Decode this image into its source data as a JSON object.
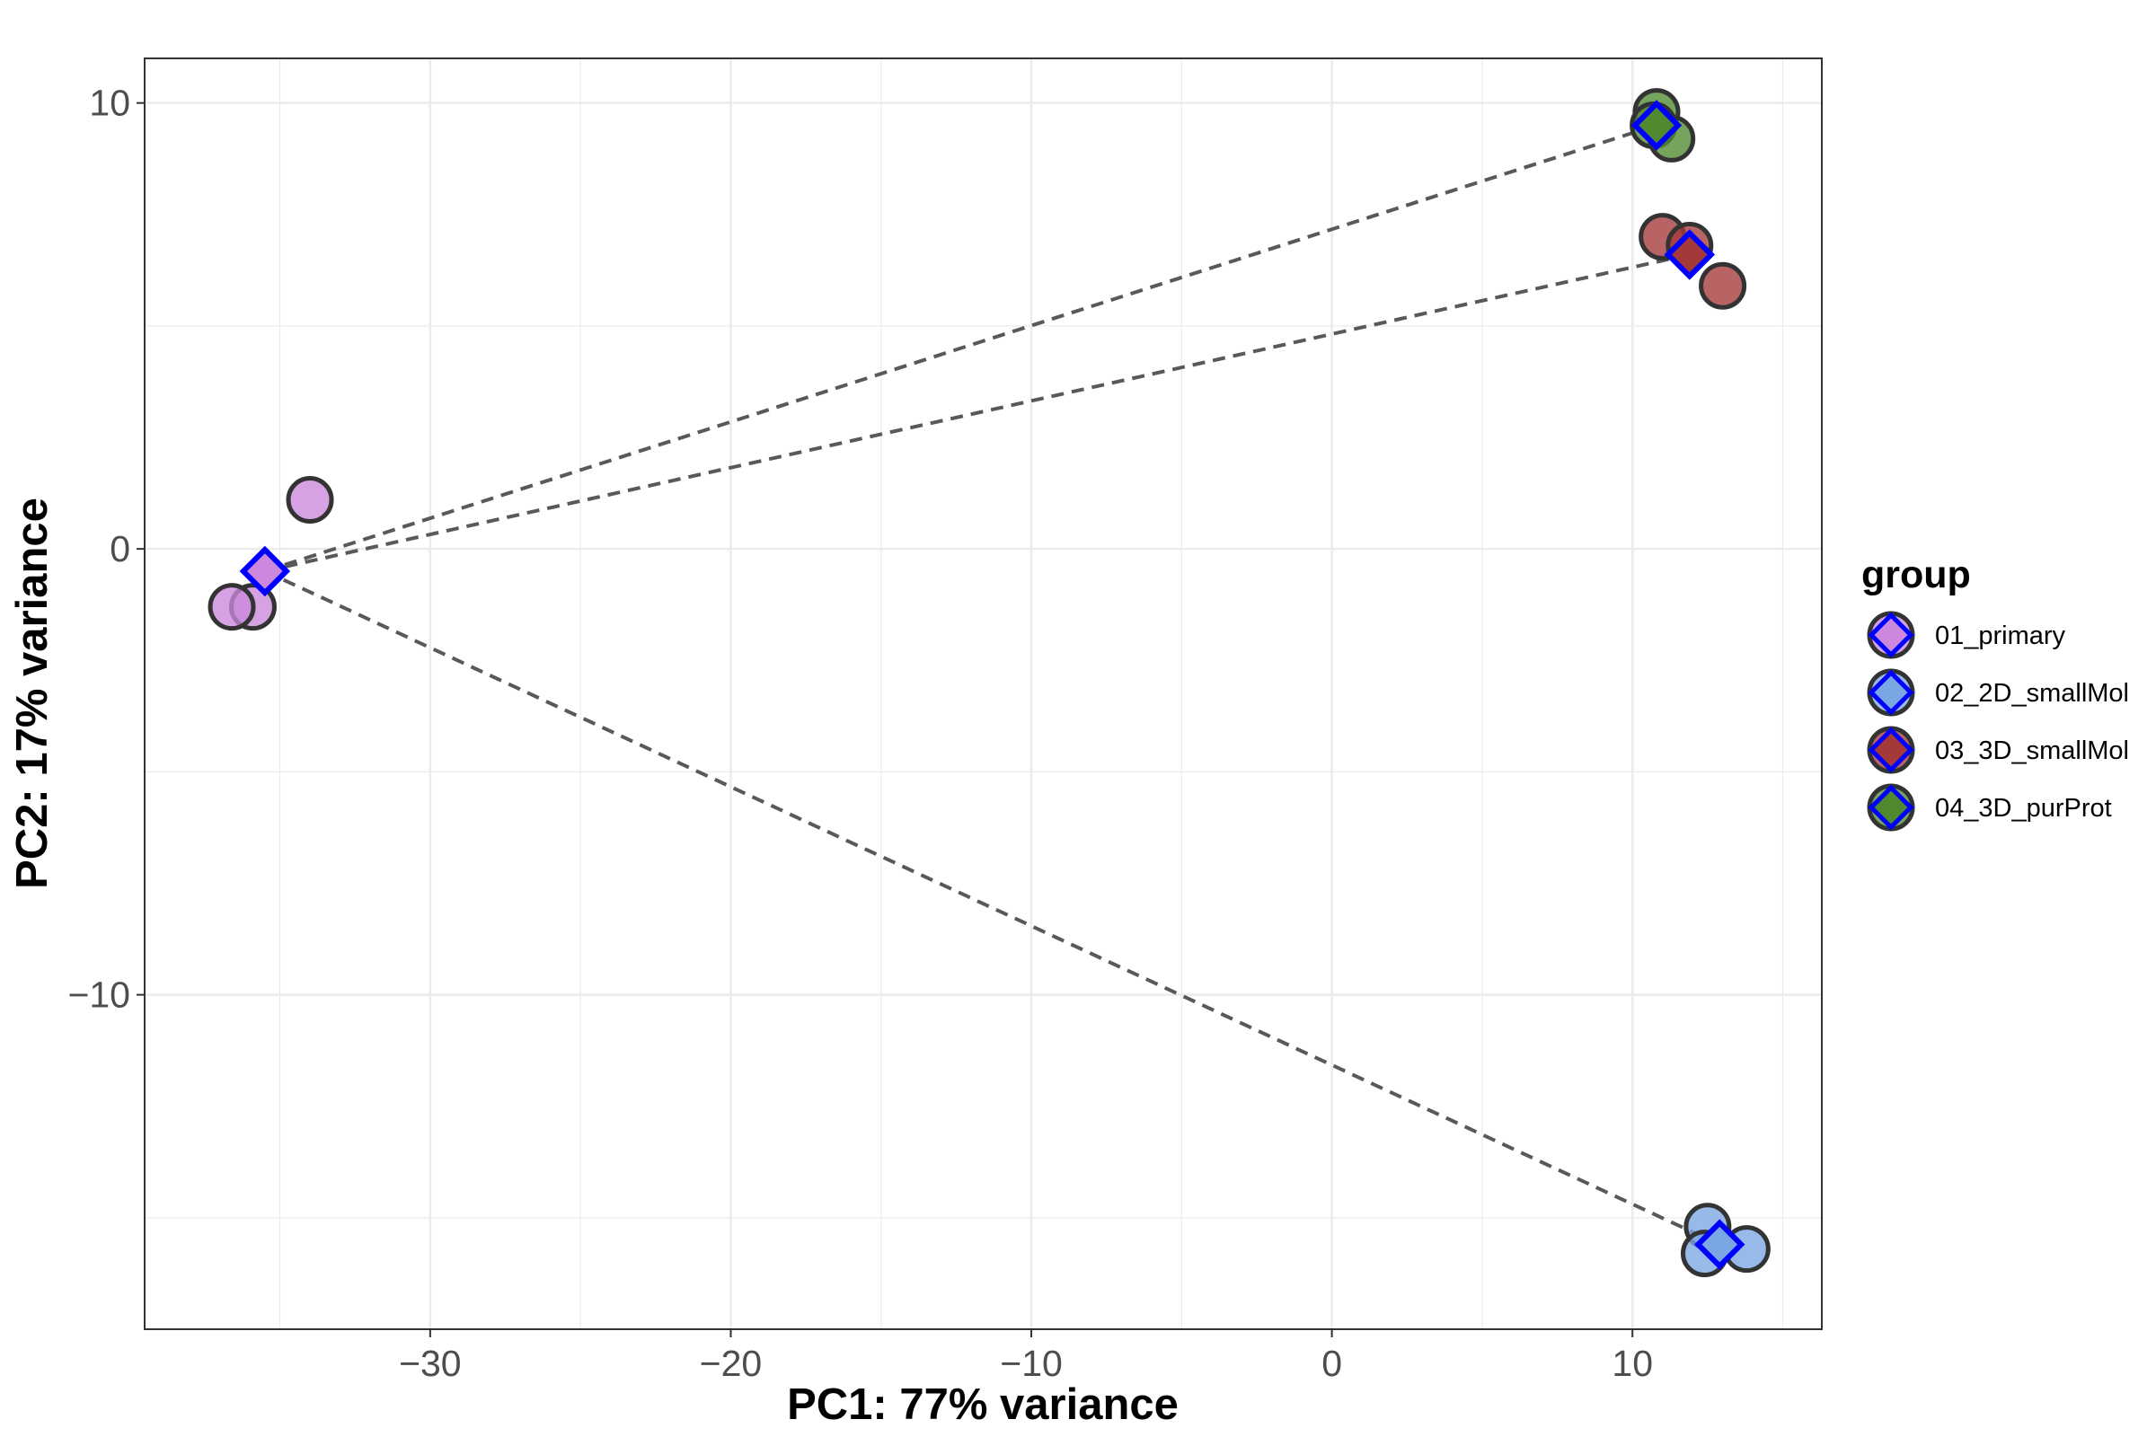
{
  "chart_data": {
    "type": "scatter",
    "xlabel": "PC1: 77% variance",
    "ylabel": "PC2: 17% variance",
    "xlim": [
      -39.5,
      16.3
    ],
    "ylim": [
      -17.5,
      11.0
    ],
    "xticks": [
      -30,
      -20,
      -10,
      0,
      10
    ],
    "yticks": [
      -10,
      0,
      10
    ],
    "xtick_labels": [
      "−30",
      "−20",
      "−10",
      "0",
      "10"
    ],
    "ytick_labels": [
      "−10",
      "0",
      "10"
    ],
    "grid": true,
    "legend": {
      "title": "group",
      "position": "right"
    },
    "series": [
      {
        "name": "01_primary",
        "color": "#cc88dd",
        "points": [
          {
            "x": -34.0,
            "y": 1.1
          },
          {
            "x": -35.9,
            "y": -1.3
          },
          {
            "x": -36.6,
            "y": -1.3
          }
        ],
        "centroid": {
          "x": -35.5,
          "y": -0.5
        }
      },
      {
        "name": "02_2D_smallMol",
        "color": "#7aa6e3",
        "points": [
          {
            "x": 12.5,
            "y": -15.2
          },
          {
            "x": 13.8,
            "y": -15.7
          },
          {
            "x": 12.4,
            "y": -15.8
          }
        ],
        "centroid": {
          "x": 12.9,
          "y": -15.6
        }
      },
      {
        "name": "03_3D_smallMol",
        "color": "#a53838",
        "points": [
          {
            "x": 11.0,
            "y": 7.0
          },
          {
            "x": 11.9,
            "y": 6.8
          },
          {
            "x": 13.0,
            "y": 5.9
          }
        ],
        "centroid": {
          "x": 11.9,
          "y": 6.6
        }
      },
      {
        "name": "04_3D_purProt",
        "color": "#4f8a2e",
        "points": [
          {
            "x": 10.8,
            "y": 9.8
          },
          {
            "x": 10.7,
            "y": 9.5
          },
          {
            "x": 11.3,
            "y": 9.2
          }
        ],
        "centroid": {
          "x": 10.8,
          "y": 9.5
        }
      }
    ],
    "connectors": [
      {
        "from": "01_primary",
        "to": "04_3D_purProt"
      },
      {
        "from": "01_primary",
        "to": "03_3D_smallMol"
      },
      {
        "from": "01_primary",
        "to": "02_2D_smallMol"
      }
    ],
    "centroid_outline_color": "#0000ff",
    "point_outline_color": "#333333",
    "connector_color": "#595959",
    "panel_border_color": "#333333",
    "grid_color": "#ebebeb"
  }
}
